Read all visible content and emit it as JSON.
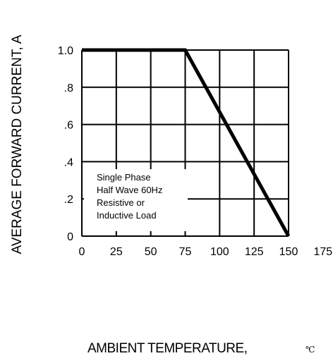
{
  "chart_data": {
    "type": "line",
    "title": "",
    "xlabel": "AMBIENT TEMPERATURE,",
    "xunit": "℃",
    "ylabel": "AVERAGE  FORWARD CURRENT, A",
    "xlim": [
      0,
      150
    ],
    "ylim": [
      0,
      1.0
    ],
    "x_ticks": [
      "0",
      "25",
      "50",
      "75",
      "100",
      "125",
      "150",
      "175"
    ],
    "y_ticks": [
      "1.0",
      ".8",
      ".6",
      ".4",
      ".2",
      "0"
    ],
    "grid": true,
    "series": [
      {
        "x": [
          0,
          75,
          150
        ],
        "y": [
          1.0,
          1.0,
          0
        ]
      }
    ],
    "annotation": [
      "Single Phase",
      "Half Wave 60Hz",
      "Resistive or",
      "Inductive Load"
    ]
  }
}
